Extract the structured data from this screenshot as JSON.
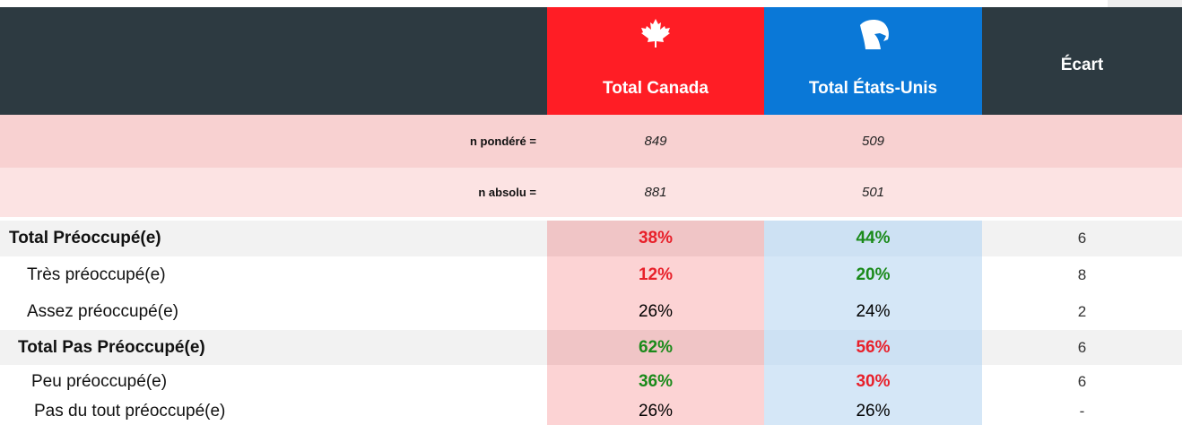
{
  "header": {
    "columns": [
      "Total Canada",
      "Total États-Unis",
      "Écart"
    ]
  },
  "sample_rows": [
    {
      "label": "n pondéré =",
      "values": [
        "849",
        "509"
      ]
    },
    {
      "label": "n absolu =",
      "values": [
        "881",
        "501"
      ]
    }
  ],
  "rows": [
    {
      "label": "Total Préoccupé(e)",
      "total": true,
      "cells": [
        {
          "text": "38%",
          "color": "#e8202a"
        },
        {
          "text": "44%",
          "color": "#1a8a1a"
        }
      ],
      "gap": "6"
    },
    {
      "label": "Très préoccupé(e)",
      "total": false,
      "cells": [
        {
          "text": "12%",
          "color": "#e8202a"
        },
        {
          "text": "20%",
          "color": "#1a8a1a"
        }
      ],
      "gap": "8"
    },
    {
      "label": "Assez préoccupé(e)",
      "total": false,
      "cells": [
        {
          "text": "26%"
        },
        {
          "text": "24%"
        }
      ],
      "gap": "2"
    },
    {
      "label": "Total Pas Préoccupé(e)",
      "total": true,
      "cells": [
        {
          "text": "62%",
          "color": "#1a8a1a"
        },
        {
          "text": "56%",
          "color": "#e8202a"
        }
      ],
      "gap": "6"
    },
    {
      "label": "Peu préoccupé(e)",
      "total": false,
      "cells": [
        {
          "text": "36%",
          "color": "#1a8a1a"
        },
        {
          "text": "30%",
          "color": "#e8202a"
        }
      ],
      "gap": "6"
    },
    {
      "label": "Pas du tout préoccupé(e)",
      "total": false,
      "cells": [
        {
          "text": "26%"
        },
        {
          "text": "26%"
        }
      ],
      "gap": "-"
    }
  ]
}
